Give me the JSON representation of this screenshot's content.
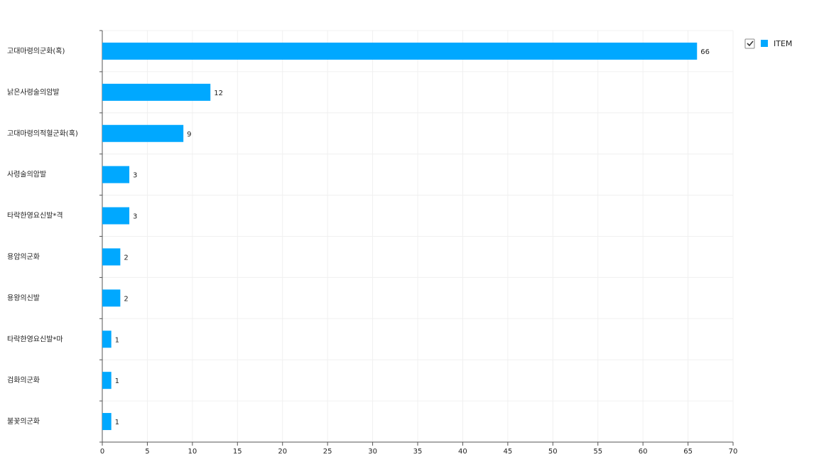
{
  "chart_data": {
    "type": "bar",
    "orientation": "horizontal",
    "categories": [
      "고대마령의군화(혹)",
      "낡은사령술의암발",
      "고대마령의적혈군화(혹)",
      "사령술의암발",
      "타락한영요신발*격",
      "용암의군화",
      "용왕의신발",
      "타락한영요신발*마",
      "검화의군화",
      "불꽃의군화"
    ],
    "series": [
      {
        "name": "ITEM",
        "color": "#00a8ff",
        "values": [
          66,
          12,
          9,
          3,
          3,
          2,
          2,
          1,
          1,
          1
        ]
      }
    ],
    "xlim": [
      0,
      70
    ],
    "xticks": [
      0,
      5,
      10,
      15,
      20,
      25,
      30,
      35,
      40,
      45,
      50,
      55,
      60,
      65,
      70
    ],
    "grid": true,
    "legend": "top-right"
  }
}
